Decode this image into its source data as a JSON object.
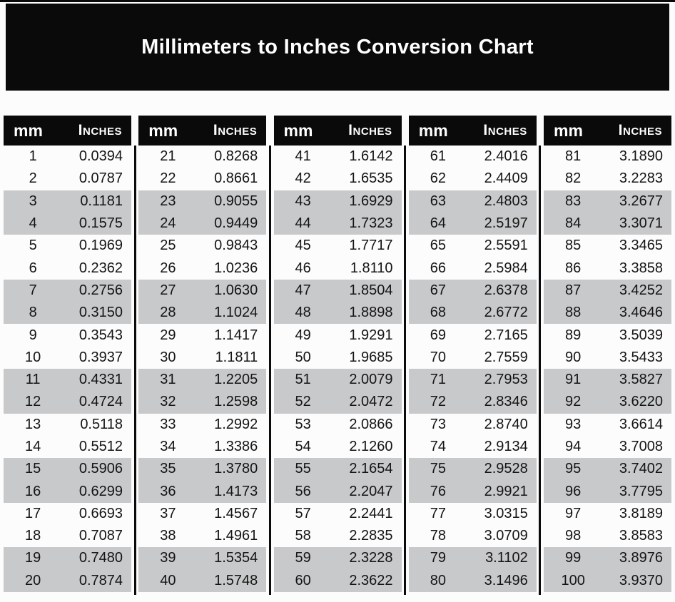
{
  "title": "Millimeters to Inches Conversion Chart",
  "columns": {
    "mm": "mm",
    "inches": "Inches"
  },
  "colors": {
    "banner_bg": "#0a0a0a",
    "header_bg": "#0a0a0a",
    "header_text": "#ffffff",
    "row_shade": "#c8c9ca",
    "page_bg": "#fcfcfc",
    "text": "#141414"
  },
  "tables": [
    {
      "rows": [
        [
          "1",
          "0.0394"
        ],
        [
          "2",
          "0.0787"
        ],
        [
          "3",
          "0.1181"
        ],
        [
          "4",
          "0.1575"
        ],
        [
          "5",
          "0.1969"
        ],
        [
          "6",
          "0.2362"
        ],
        [
          "7",
          "0.2756"
        ],
        [
          "8",
          "0.3150"
        ],
        [
          "9",
          "0.3543"
        ],
        [
          "10",
          "0.3937"
        ],
        [
          "11",
          "0.4331"
        ],
        [
          "12",
          "0.4724"
        ],
        [
          "13",
          "0.5118"
        ],
        [
          "14",
          "0.5512"
        ],
        [
          "15",
          "0.5906"
        ],
        [
          "16",
          "0.6299"
        ],
        [
          "17",
          "0.6693"
        ],
        [
          "18",
          "0.7087"
        ],
        [
          "19",
          "0.7480"
        ],
        [
          "20",
          "0.7874"
        ]
      ]
    },
    {
      "rows": [
        [
          "21",
          "0.8268"
        ],
        [
          "22",
          "0.8661"
        ],
        [
          "23",
          "0.9055"
        ],
        [
          "24",
          "0.9449"
        ],
        [
          "25",
          "0.9843"
        ],
        [
          "26",
          "1.0236"
        ],
        [
          "27",
          "1.0630"
        ],
        [
          "28",
          "1.1024"
        ],
        [
          "29",
          "1.1417"
        ],
        [
          "30",
          "1.1811"
        ],
        [
          "31",
          "1.2205"
        ],
        [
          "32",
          "1.2598"
        ],
        [
          "33",
          "1.2992"
        ],
        [
          "34",
          "1.3386"
        ],
        [
          "35",
          "1.3780"
        ],
        [
          "36",
          "1.4173"
        ],
        [
          "37",
          "1.4567"
        ],
        [
          "38",
          "1.4961"
        ],
        [
          "39",
          "1.5354"
        ],
        [
          "40",
          "1.5748"
        ]
      ]
    },
    {
      "rows": [
        [
          "41",
          "1.6142"
        ],
        [
          "42",
          "1.6535"
        ],
        [
          "43",
          "1.6929"
        ],
        [
          "44",
          "1.7323"
        ],
        [
          "45",
          "1.7717"
        ],
        [
          "46",
          "1.8110"
        ],
        [
          "47",
          "1.8504"
        ],
        [
          "48",
          "1.8898"
        ],
        [
          "49",
          "1.9291"
        ],
        [
          "50",
          "1.9685"
        ],
        [
          "51",
          "2.0079"
        ],
        [
          "52",
          "2.0472"
        ],
        [
          "53",
          "2.0866"
        ],
        [
          "54",
          "2.1260"
        ],
        [
          "55",
          "2.1654"
        ],
        [
          "56",
          "2.2047"
        ],
        [
          "57",
          "2.2441"
        ],
        [
          "58",
          "2.2835"
        ],
        [
          "59",
          "2.3228"
        ],
        [
          "60",
          "2.3622"
        ]
      ]
    },
    {
      "rows": [
        [
          "61",
          "2.4016"
        ],
        [
          "62",
          "2.4409"
        ],
        [
          "63",
          "2.4803"
        ],
        [
          "64",
          "2.5197"
        ],
        [
          "65",
          "2.5591"
        ],
        [
          "66",
          "2.5984"
        ],
        [
          "67",
          "2.6378"
        ],
        [
          "68",
          "2.6772"
        ],
        [
          "69",
          "2.7165"
        ],
        [
          "70",
          "2.7559"
        ],
        [
          "71",
          "2.7953"
        ],
        [
          "72",
          "2.8346"
        ],
        [
          "73",
          "2.8740"
        ],
        [
          "74",
          "2.9134"
        ],
        [
          "75",
          "2.9528"
        ],
        [
          "76",
          "2.9921"
        ],
        [
          "77",
          "3.0315"
        ],
        [
          "78",
          "3.0709"
        ],
        [
          "79",
          "3.1102"
        ],
        [
          "80",
          "3.1496"
        ]
      ]
    },
    {
      "rows": [
        [
          "81",
          "3.1890"
        ],
        [
          "82",
          "3.2283"
        ],
        [
          "83",
          "3.2677"
        ],
        [
          "84",
          "3.3071"
        ],
        [
          "85",
          "3.3465"
        ],
        [
          "86",
          "3.3858"
        ],
        [
          "87",
          "3.4252"
        ],
        [
          "88",
          "3.4646"
        ],
        [
          "89",
          "3.5039"
        ],
        [
          "90",
          "3.5433"
        ],
        [
          "91",
          "3.5827"
        ],
        [
          "92",
          "3.6220"
        ],
        [
          "93",
          "3.6614"
        ],
        [
          "94",
          "3.7008"
        ],
        [
          "95",
          "3.7402"
        ],
        [
          "96",
          "3.7795"
        ],
        [
          "97",
          "3.8189"
        ],
        [
          "98",
          "3.8583"
        ],
        [
          "99",
          "3.8976"
        ],
        [
          "100",
          "3.9370"
        ]
      ]
    }
  ]
}
